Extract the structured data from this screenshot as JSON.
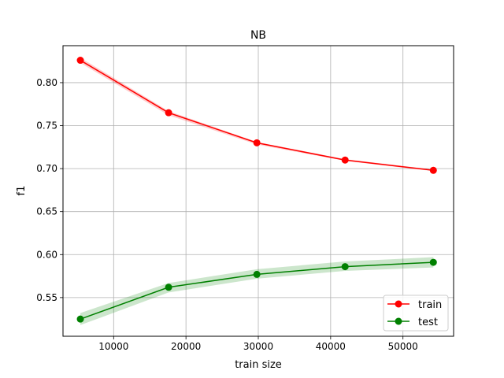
{
  "chart_data": {
    "type": "line",
    "title": "NB",
    "xlabel": "train size",
    "ylabel": "f1",
    "xlim": [
      3000,
      57000
    ],
    "ylim": [
      0.505,
      0.843
    ],
    "xticks": [
      10000,
      20000,
      30000,
      40000,
      50000
    ],
    "xtick_labels": [
      "10000",
      "20000",
      "30000",
      "40000",
      "50000"
    ],
    "yticks": [
      0.55,
      0.6,
      0.65,
      0.7,
      0.75,
      0.8
    ],
    "ytick_labels": [
      "0.55",
      "0.60",
      "0.65",
      "0.70",
      "0.75",
      "0.80"
    ],
    "grid": true,
    "legend_position": "bottom-right",
    "x": [
      5400,
      17600,
      29800,
      42000,
      54200
    ],
    "series": [
      {
        "name": "train",
        "color": "#ff0000",
        "values": [
          0.826,
          0.765,
          0.73,
          0.71,
          0.698
        ],
        "band_lower": [
          0.823,
          0.762,
          0.728,
          0.709,
          0.697
        ],
        "band_upper": [
          0.829,
          0.767,
          0.731,
          0.711,
          0.699
        ]
      },
      {
        "name": "test",
        "color": "#008000",
        "values": [
          0.525,
          0.562,
          0.577,
          0.586,
          0.591
        ],
        "band_lower": [
          0.518,
          0.556,
          0.572,
          0.581,
          0.585
        ],
        "band_upper": [
          0.532,
          0.567,
          0.583,
          0.592,
          0.597
        ]
      }
    ]
  }
}
